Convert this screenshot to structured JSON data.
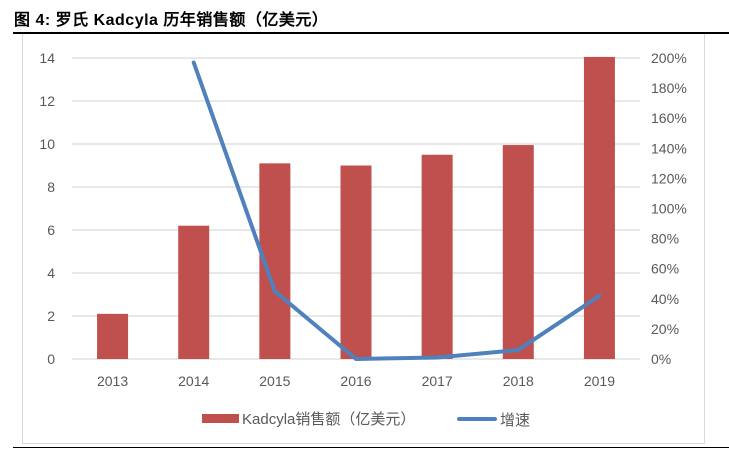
{
  "figure": {
    "title": "图 4:  罗氏 Kadcyla 历年销售额（亿美元）"
  },
  "legend": {
    "bar_label": "Kadcyla销售额（亿美元）",
    "line_label": "增速"
  },
  "colors": {
    "bar": "#c0504d",
    "line": "#4f81bd",
    "grid": "#d9d9d9",
    "axis_text": "#595959"
  },
  "chart_data": {
    "type": "bar+line",
    "title": "罗氏 Kadcyla 历年销售额（亿美元）",
    "categories": [
      "2013",
      "2014",
      "2015",
      "2016",
      "2017",
      "2018",
      "2019"
    ],
    "series": [
      {
        "name": "Kadcyla销售额（亿美元）",
        "type": "bar",
        "axis": "left",
        "values": [
          2.1,
          6.2,
          9.1,
          9.0,
          9.5,
          9.95,
          14.05
        ]
      },
      {
        "name": "增速",
        "type": "line",
        "axis": "right",
        "values": [
          null,
          1.97,
          0.45,
          0.0,
          0.01,
          0.06,
          0.42
        ]
      }
    ],
    "left_axis": {
      "ylim": [
        0,
        14
      ],
      "ticks": [
        "0",
        "2",
        "4",
        "6",
        "8",
        "10",
        "12",
        "14"
      ]
    },
    "right_axis": {
      "ylim": [
        0,
        2.0
      ],
      "ticks": [
        "0%",
        "20%",
        "40%",
        "60%",
        "80%",
        "100%",
        "120%",
        "140%",
        "160%",
        "180%",
        "200%"
      ]
    },
    "xlabel": "",
    "ylabel": "",
    "grid": true,
    "legend_position": "bottom"
  }
}
